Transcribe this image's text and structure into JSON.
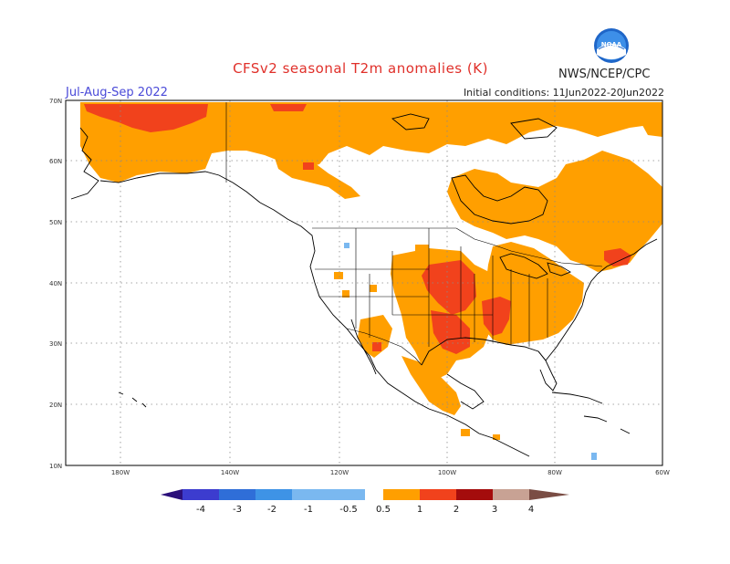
{
  "title": "CFSv2 seasonal T2m anomalies (K)",
  "season": "Jul-Aug-Sep 2022",
  "initial_conditions": "Initial conditions: 11Jun2022-20Jun2022",
  "agency": "NWS/NCEP/CPC",
  "logo": {
    "text": "NOAA",
    "icon": "noaa-logo"
  },
  "map": {
    "lat_range": [
      10,
      70
    ],
    "lon_range": [
      -190,
      -60
    ],
    "lat_ticks": [
      "10N",
      "20N",
      "30N",
      "40N",
      "50N",
      "60N",
      "70N"
    ],
    "lon_ticks": [
      "180W",
      "140W",
      "120W",
      "100W",
      "80W",
      "60W"
    ]
  },
  "colorbar": {
    "labels": [
      "-4",
      "-3",
      "-2",
      "-1",
      "-0.5",
      "0.5",
      "1",
      "2",
      "3",
      "4"
    ],
    "colors": {
      "below_-4": "#2b0f7a",
      "-4_-3": "#3c3ccf",
      "-3_-2": "#2f6ed8",
      "-2_-1": "#3e93e6",
      "-1_-0.5": "#7ab8f0",
      "0.5_1": "#ff9f00",
      "1_2": "#f1421c",
      "2_3": "#a40c0c",
      "3_4": "#c8a294",
      "above_4": "#7a4d44"
    }
  },
  "colors": {
    "anomaly_0.5_1": "#ff9f00",
    "anomaly_1_2": "#f1421c",
    "anomaly_neg": "#7ab8f0",
    "title": "#e0302a",
    "season": "#4a4ad8"
  }
}
